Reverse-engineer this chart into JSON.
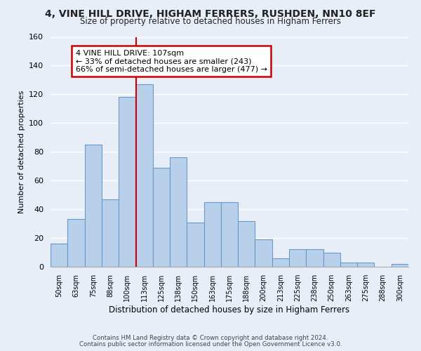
{
  "title": "4, VINE HILL DRIVE, HIGHAM FERRERS, RUSHDEN, NN10 8EF",
  "subtitle": "Size of property relative to detached houses in Higham Ferrers",
  "xlabel": "Distribution of detached houses by size in Higham Ferrers",
  "ylabel": "Number of detached properties",
  "bin_labels": [
    "50sqm",
    "63sqm",
    "75sqm",
    "88sqm",
    "100sqm",
    "113sqm",
    "125sqm",
    "138sqm",
    "150sqm",
    "163sqm",
    "175sqm",
    "188sqm",
    "200sqm",
    "213sqm",
    "225sqm",
    "238sqm",
    "250sqm",
    "263sqm",
    "275sqm",
    "288sqm",
    "300sqm"
  ],
  "bar_heights": [
    16,
    33,
    85,
    47,
    118,
    127,
    69,
    76,
    31,
    45,
    45,
    32,
    19,
    6,
    12,
    12,
    10,
    3,
    3,
    0,
    2
  ],
  "bar_color": "#b8d0ea",
  "bar_edge_color": "#6699cc",
  "annotation_title": "4 VINE HILL DRIVE: 107sqm",
  "annotation_line1": "← 33% of detached houses are smaller (243)",
  "annotation_line2": "66% of semi-detached houses are larger (477) →",
  "annotation_box_color": "#ffffff",
  "annotation_box_edge": "#cc0000",
  "ref_line_color": "#cc0000",
  "ylim": [
    0,
    160
  ],
  "yticks": [
    0,
    20,
    40,
    60,
    80,
    100,
    120,
    140,
    160
  ],
  "footer1": "Contains HM Land Registry data © Crown copyright and database right 2024.",
  "footer2": "Contains public sector information licensed under the Open Government Licence v3.0.",
  "background_color": "#e8eef8",
  "plot_background": "#e8eef8",
  "grid_color": "#ffffff"
}
